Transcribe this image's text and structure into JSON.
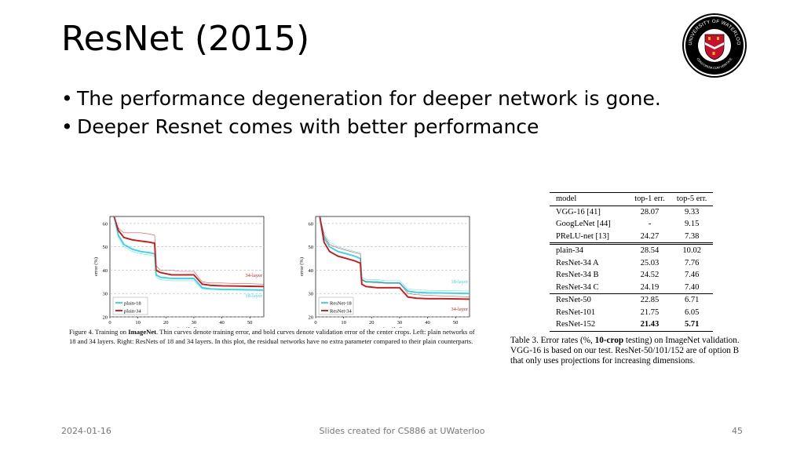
{
  "slide": {
    "title": "ResNet (2015)",
    "bullets": [
      "The performance degeneration for deeper network is gone.",
      "Deeper Resnet comes with better performance"
    ],
    "bullet_symbol": "•",
    "footer_date": "2024-01-16",
    "footer_center": "Slides created for CS886 at UWaterloo",
    "page_number": "45"
  },
  "logo": {
    "ring_text": "UNIVERSITY OF WATERLOO",
    "motto": "CONCORDIA CUM VERITATE"
  },
  "colors": {
    "cyan": "#2fd8e8",
    "red": "#d11414",
    "accent_label_cyan": "#2fd8e8",
    "accent_label_red": "#d11414"
  },
  "figure": {
    "caption_prefix": "Figure 4. Training on ",
    "caption_bold": "ImageNet",
    "caption_rest": ". Thin curves denote training error, and bold curves denote validation error of the center crops. Left: plain networks of 18 and 34 layers. Right: ResNets of 18 and 34 layers. In this plot, the residual networks have no extra parameter compared to their plain counterparts."
  },
  "chart_data": [
    {
      "type": "line",
      "xlabel": "iter. (1e4)",
      "ylabel": "error (%)",
      "xlim": [
        0,
        55
      ],
      "ylim": [
        20,
        63
      ],
      "xticks": [
        0,
        10,
        20,
        30,
        40,
        50
      ],
      "yticks": [
        20,
        30,
        40,
        50,
        60
      ],
      "grid": "dashed horizontal",
      "legend": "bottom-left",
      "legend_entries": [
        "plain-18",
        "plain-34"
      ],
      "annotations": [
        "34-layer",
        "18-layer"
      ],
      "series": [
        {
          "name": "plain-18",
          "color": "cyan",
          "x": [
            1.5,
            3,
            5,
            8,
            11,
            14,
            16,
            16.5,
            18,
            22,
            25,
            30,
            33,
            36,
            40,
            45,
            50,
            55
          ],
          "y": [
            63,
            55,
            51,
            49,
            48,
            47.5,
            47,
            38,
            37,
            36.5,
            36.5,
            36.5,
            32.5,
            32,
            31.8,
            31.7,
            31.6,
            31.5
          ]
        },
        {
          "name": "plain-34",
          "color": "red",
          "x": [
            1.5,
            3,
            5,
            8,
            11,
            14,
            16,
            16.5,
            18,
            22,
            25,
            30,
            33,
            36,
            40,
            45,
            50,
            55
          ],
          "y": [
            63,
            57,
            54,
            53,
            52.5,
            52,
            51.5,
            40,
            39,
            38,
            38,
            38,
            34,
            33.5,
            33.3,
            33.2,
            33.1,
            33
          ]
        },
        {
          "name": "",
          "color": "cyan",
          "x": [
            1.5,
            3,
            5,
            8,
            11,
            14,
            16,
            16.5,
            18,
            22,
            25,
            30,
            33,
            36,
            40,
            45,
            50,
            55
          ],
          "y": [
            63,
            54,
            50,
            48,
            47,
            46.5,
            46,
            37,
            36,
            35.5,
            35.5,
            35.5,
            32,
            31.8,
            31.6,
            31.5,
            31.4,
            31.3
          ]
        },
        {
          "name": "",
          "color": "red",
          "x": [
            1.5,
            3,
            5,
            8,
            11,
            14,
            16,
            16.5,
            18,
            22,
            25,
            30,
            33,
            36,
            40,
            45,
            50,
            55
          ],
          "y": [
            63,
            58,
            56,
            56,
            56,
            55.5,
            55,
            42,
            40,
            40,
            39.5,
            39.5,
            35,
            34.5,
            34.5,
            34.3,
            34.2,
            34
          ]
        }
      ]
    },
    {
      "type": "line",
      "xlabel": "iter. (1e4)",
      "ylabel": "error (%)",
      "xlim": [
        0,
        55
      ],
      "ylim": [
        20,
        63
      ],
      "xticks": [
        0,
        10,
        20,
        30,
        40,
        50
      ],
      "yticks": [
        20,
        30,
        40,
        50,
        60
      ],
      "grid": "dashed horizontal",
      "legend": "bottom-left",
      "legend_entries": [
        "ResNet-18",
        "ResNet-34"
      ],
      "annotations": [
        "18-layer",
        "34-layer"
      ],
      "series": [
        {
          "name": "ResNet-18",
          "color": "cyan",
          "x": [
            1.5,
            3,
            5,
            8,
            11,
            14,
            16,
            16.5,
            18,
            22,
            25,
            30,
            33,
            36,
            40,
            45,
            50,
            55
          ],
          "y": [
            63,
            54,
            50,
            48,
            47,
            46,
            45,
            36,
            35,
            35,
            34.5,
            34.5,
            31,
            30.5,
            30.3,
            30.2,
            30.1,
            30
          ]
        },
        {
          "name": "ResNet-34",
          "color": "red",
          "x": [
            1.5,
            3,
            5,
            8,
            11,
            14,
            16,
            16.5,
            18,
            22,
            25,
            30,
            33,
            36,
            40,
            45,
            50,
            55
          ],
          "y": [
            63,
            52,
            48,
            46,
            45,
            44,
            43,
            34,
            33,
            32.5,
            32.5,
            32.5,
            28.5,
            28,
            27.8,
            27.8,
            27.7,
            27.6
          ]
        },
        {
          "name": "",
          "color": "cyan",
          "x": [
            1.5,
            3,
            5,
            8,
            11,
            14,
            16,
            16.5,
            18,
            22,
            25,
            30,
            33,
            36,
            40,
            45,
            50,
            55
          ],
          "y": [
            63,
            56,
            52,
            50,
            49,
            48,
            47.5,
            37,
            36,
            36,
            35.5,
            35.5,
            32,
            31.6,
            31.4,
            31.3,
            31.2,
            31.1
          ]
        },
        {
          "name": "",
          "color": "red",
          "x": [
            1.5,
            3,
            5,
            8,
            11,
            14,
            16,
            16.5,
            18,
            22,
            25,
            30,
            33,
            36,
            40,
            45,
            50,
            55
          ],
          "y": [
            63,
            55,
            51,
            49.5,
            48.5,
            47.5,
            47,
            36,
            35,
            34.5,
            34.5,
            34.5,
            30,
            29.5,
            29.2,
            29,
            28.8,
            28.6
          ]
        }
      ]
    },
    {
      "type": "table",
      "columns": [
        "model",
        "top-1 err.",
        "top-5 err."
      ],
      "rows": [
        [
          "VGG-16 [41]",
          "28.07",
          "9.33"
        ],
        [
          "GoogLeNet [44]",
          "-",
          "9.15"
        ],
        [
          "PReLU-net [13]",
          "24.27",
          "7.38"
        ],
        [
          "plain-34",
          "28.54",
          "10.02"
        ],
        [
          "ResNet-34 A",
          "25.03",
          "7.76"
        ],
        [
          "ResNet-34 B",
          "24.52",
          "7.46"
        ],
        [
          "ResNet-34 C",
          "24.19",
          "7.40"
        ],
        [
          "ResNet-50",
          "22.85",
          "6.71"
        ],
        [
          "ResNet-101",
          "21.75",
          "6.05"
        ],
        [
          "ResNet-152",
          "21.43",
          "5.71"
        ]
      ],
      "caption_prefix": "Table 3. Error rates (%, ",
      "caption_bold": "10-crop",
      "caption_rest": " testing) on ImageNet validation. VGG-16 is based on our test. ResNet-50/101/152 are of option B that only uses projections for increasing dimensions."
    }
  ]
}
